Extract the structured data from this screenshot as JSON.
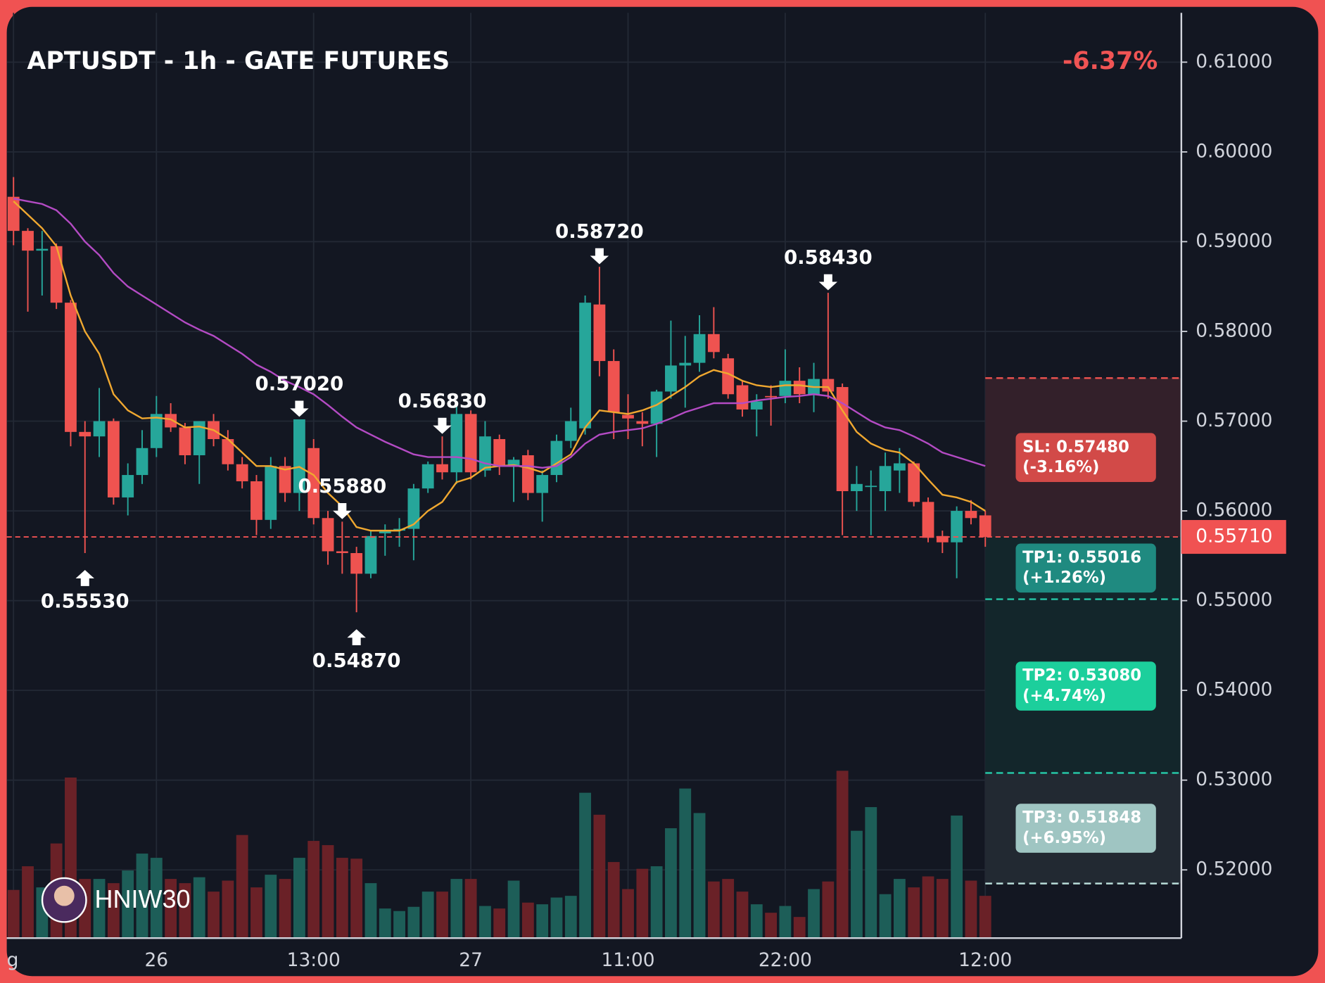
{
  "chart_data": {
    "type": "candlestick",
    "title": "APTUSDT - 1h - GATE FUTURES",
    "change_label": "-6.37%",
    "watermark": "HNIW30",
    "up_color": "#26a69a",
    "down_color": "#ef5350",
    "volume_up_color": "#1d5e58",
    "volume_down_color": "#6a2127",
    "grid": true,
    "ylim": [
      0.5124,
      0.6155
    ],
    "yticks": [
      {
        "value": 0.52,
        "label": "0.52000"
      },
      {
        "value": 0.53,
        "label": "0.53000"
      },
      {
        "value": 0.54,
        "label": "0.54000"
      },
      {
        "value": 0.55,
        "label": "0.55000"
      },
      {
        "value": 0.56,
        "label": "0.56000"
      },
      {
        "value": 0.57,
        "label": "0.57000"
      },
      {
        "value": 0.58,
        "label": "0.58000"
      },
      {
        "value": 0.59,
        "label": "0.59000"
      },
      {
        "value": 0.6,
        "label": "0.60000"
      },
      {
        "value": 0.61,
        "label": "0.61000"
      }
    ],
    "categories": [
      "g",
      null,
      null,
      null,
      null,
      null,
      null,
      null,
      null,
      null,
      "26",
      null,
      null,
      null,
      null,
      null,
      null,
      null,
      null,
      null,
      null,
      "13:00",
      null,
      null,
      null,
      null,
      null,
      null,
      null,
      null,
      null,
      null,
      "27",
      null,
      null,
      null,
      null,
      null,
      null,
      null,
      null,
      null,
      null,
      "11:00",
      null,
      null,
      null,
      null,
      null,
      null,
      null,
      null,
      null,
      null,
      "22:00",
      null,
      null,
      null,
      null,
      null,
      null,
      null,
      null,
      null,
      null,
      null,
      null,
      null,
      "12:00"
    ],
    "open": [
      0.595,
      0.5912,
      0.589,
      0.5895,
      0.5832,
      0.5688,
      0.5683,
      0.57,
      0.5615,
      0.564,
      0.567,
      0.5708,
      0.5693,
      0.5662,
      0.57,
      0.568,
      0.5652,
      0.5633,
      0.559,
      0.565,
      0.562,
      0.567,
      0.5592,
      0.5555,
      0.5553,
      0.553,
      0.5575,
      0.5578,
      0.558,
      0.5625,
      0.5652,
      0.5643,
      0.5708,
      0.5645,
      0.568,
      0.565,
      0.5662,
      0.562,
      0.564,
      0.5678,
      0.5692,
      0.583,
      0.5767,
      0.5707,
      0.57,
      0.5697,
      0.5733,
      0.5762,
      0.5765,
      0.5797,
      0.577,
      0.574,
      0.5713,
      0.5728,
      0.5728,
      0.5745,
      0.573,
      0.5747,
      0.5738,
      0.5622,
      0.5627,
      0.5622,
      0.5645,
      0.5653,
      0.561,
      0.5572,
      0.5565,
      0.56,
      0.5595
    ],
    "high": [
      0.5972,
      0.5915,
      0.5912,
      0.5898,
      0.5835,
      0.57,
      0.5737,
      0.5703,
      0.5653,
      0.569,
      0.5728,
      0.572,
      0.5698,
      0.57,
      0.5708,
      0.569,
      0.566,
      0.564,
      0.566,
      0.566,
      0.5702,
      0.568,
      0.56,
      0.5588,
      0.556,
      0.5578,
      0.5585,
      0.5592,
      0.563,
      0.5655,
      0.5683,
      0.5722,
      0.5712,
      0.57,
      0.5685,
      0.566,
      0.5668,
      0.5645,
      0.5685,
      0.5715,
      0.584,
      0.5872,
      0.578,
      0.573,
      0.571,
      0.5735,
      0.5812,
      0.5795,
      0.5818,
      0.5827,
      0.5775,
      0.5745,
      0.573,
      0.574,
      0.578,
      0.576,
      0.5765,
      0.5843,
      0.5742,
      0.565,
      0.5645,
      0.5665,
      0.567,
      0.5655,
      0.5615,
      0.5578,
      0.5605,
      0.5612,
      0.56
    ],
    "low": [
      0.5896,
      0.5822,
      0.584,
      0.5825,
      0.5672,
      0.5553,
      0.566,
      0.5607,
      0.5595,
      0.563,
      0.566,
      0.5688,
      0.5652,
      0.563,
      0.5672,
      0.5645,
      0.5625,
      0.5573,
      0.558,
      0.561,
      0.56,
      0.5585,
      0.554,
      0.553,
      0.5487,
      0.5525,
      0.555,
      0.556,
      0.5545,
      0.562,
      0.5635,
      0.563,
      0.5635,
      0.5638,
      0.564,
      0.561,
      0.5612,
      0.5588,
      0.5632,
      0.567,
      0.5685,
      0.575,
      0.568,
      0.568,
      0.5672,
      0.566,
      0.5725,
      0.5715,
      0.5755,
      0.577,
      0.5725,
      0.5705,
      0.5683,
      0.5695,
      0.572,
      0.572,
      0.571,
      0.5725,
      0.5573,
      0.56,
      0.5573,
      0.56,
      0.562,
      0.5605,
      0.5565,
      0.5553,
      0.5525,
      0.5585,
      0.556
    ],
    "close": [
      0.5912,
      0.589,
      0.5892,
      0.5832,
      0.5688,
      0.5683,
      0.57,
      0.5615,
      0.564,
      0.567,
      0.5708,
      0.5693,
      0.5662,
      0.57,
      0.568,
      0.5652,
      0.5633,
      0.559,
      0.565,
      0.562,
      0.5702,
      0.5592,
      0.5555,
      0.5553,
      0.553,
      0.5572,
      0.5578,
      0.558,
      0.5625,
      0.5652,
      0.5643,
      0.5708,
      0.5643,
      0.5683,
      0.565,
      0.5657,
      0.562,
      0.564,
      0.5678,
      0.57,
      0.5832,
      0.5767,
      0.571,
      0.5703,
      0.5697,
      0.5733,
      0.5762,
      0.5765,
      0.5797,
      0.5777,
      0.573,
      0.5713,
      0.5722,
      0.5727,
      0.5745,
      0.573,
      0.5747,
      0.5733,
      0.5622,
      0.563,
      0.5628,
      0.565,
      0.5653,
      0.561,
      0.557,
      0.5565,
      0.56,
      0.5592,
      0.5571
    ],
    "volume": [
      57,
      85,
      60,
      112,
      190,
      70,
      70,
      65,
      80,
      100,
      95,
      70,
      65,
      72,
      55,
      68,
      122,
      60,
      75,
      70,
      95,
      115,
      110,
      95,
      94,
      65,
      35,
      32,
      37,
      55,
      55,
      70,
      70,
      38,
      35,
      68,
      42,
      40,
      48,
      50,
      172,
      146,
      90,
      58,
      82,
      85,
      130,
      177,
      148,
      67,
      70,
      55,
      40,
      30,
      38,
      25,
      58,
      67,
      198,
      127,
      155,
      52,
      70,
      60,
      73,
      70,
      145,
      68,
      50
    ],
    "lines": [
      {
        "color": "#f0a830",
        "values": [
          0.5945,
          0.593,
          0.5915,
          0.5895,
          0.584,
          0.58,
          0.5775,
          0.573,
          0.5712,
          0.5703,
          0.5704,
          0.5702,
          0.5693,
          0.5694,
          0.569,
          0.568,
          0.5665,
          0.565,
          0.565,
          0.5646,
          0.5649,
          0.564,
          0.562,
          0.5605,
          0.5582,
          0.5578,
          0.5578,
          0.5578,
          0.5585,
          0.56,
          0.561,
          0.5632,
          0.5637,
          0.5648,
          0.565,
          0.5651,
          0.5648,
          0.5643,
          0.5653,
          0.5663,
          0.5693,
          0.5712,
          0.571,
          0.5708,
          0.5712,
          0.5718,
          0.5728,
          0.5738,
          0.575,
          0.5757,
          0.5753,
          0.5745,
          0.574,
          0.5738,
          0.574,
          0.574,
          0.5738,
          0.5738,
          0.5712,
          0.5688,
          0.5675,
          0.5668,
          0.5665,
          0.5653,
          0.5635,
          0.5618,
          0.5615,
          0.561,
          0.56
        ]
      },
      {
        "color": "#b44bc4",
        "values": [
          0.5948,
          0.5945,
          0.5942,
          0.5935,
          0.592,
          0.59,
          0.5885,
          0.5865,
          0.585,
          0.584,
          0.583,
          0.582,
          0.581,
          0.5802,
          0.5795,
          0.5785,
          0.5775,
          0.5763,
          0.5755,
          0.5745,
          0.5738,
          0.573,
          0.5718,
          0.5705,
          0.5693,
          0.5685,
          0.5677,
          0.567,
          0.5663,
          0.566,
          0.566,
          0.566,
          0.5658,
          0.5653,
          0.565,
          0.565,
          0.565,
          0.5648,
          0.565,
          0.566,
          0.5675,
          0.5685,
          0.5688,
          0.569,
          0.5692,
          0.5697,
          0.5703,
          0.571,
          0.5715,
          0.572,
          0.572,
          0.572,
          0.5723,
          0.5725,
          0.5727,
          0.5728,
          0.573,
          0.5728,
          0.572,
          0.571,
          0.57,
          0.5693,
          0.569,
          0.5683,
          0.5675,
          0.5665,
          0.566,
          0.5655,
          0.565
        ]
      }
    ],
    "annotations": [
      {
        "value": 0.5553,
        "label": "0.55530"
      },
      {
        "value": 0.5702,
        "label": "0.57020"
      },
      {
        "value": 0.5487,
        "label": "0.54870"
      },
      {
        "value": 0.5588,
        "label": "0.55880"
      },
      {
        "value": 0.5872,
        "label": "0.58720"
      },
      {
        "value": 0.5683,
        "label": "0.56830"
      },
      {
        "value": 0.5843,
        "label": "0.58430"
      }
    ],
    "last_price": {
      "value": 0.5571,
      "label": "0.55710",
      "color": "#f05252"
    },
    "levels": [
      {
        "value": 0.5748,
        "label": "SL: 0.57480",
        "change": "(-3.16%)",
        "color": "#ef5350",
        "box_color": "#d24a48",
        "zone_color": "#33202a"
      },
      {
        "value": 0.55016,
        "label": "TP1: 0.55016",
        "change": "(+1.26%)",
        "color": "#26c6a6",
        "box_color": "#1f8a80",
        "zone_color": "#13262b"
      },
      {
        "value": 0.5308,
        "label": "TP2: 0.53080",
        "change": "(+4.74%)",
        "color": "#26c6a6",
        "box_color": "#1ccf9c",
        "zone_color": "#13262b"
      },
      {
        "value": 0.51848,
        "label": "TP3: 0.51848",
        "change": "(+6.95%)",
        "color": "#b8dcd8",
        "box_color": "#9fc5c2",
        "zone_color": "#222932"
      }
    ]
  }
}
